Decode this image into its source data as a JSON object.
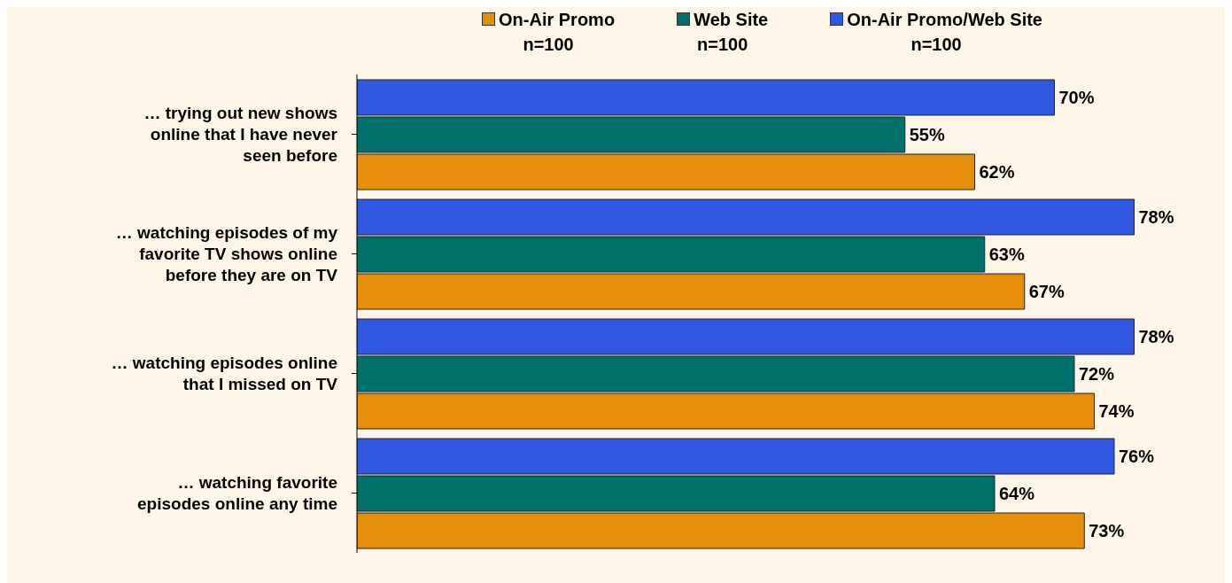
{
  "chart_data": {
    "type": "bar",
    "orientation": "horizontal",
    "categories": [
      "… trying out new shows online that I have never seen before",
      "… watching episodes of my favorite TV shows online before they are on TV",
      "… watching episodes online that I missed on TV",
      "… watching favorite episodes online any time"
    ],
    "series": [
      {
        "name": "On-Air Promo\nn=100",
        "color": "#e58e0a",
        "values": [
          62,
          67,
          74,
          73
        ],
        "value_labels": [
          "62%",
          "67%",
          "74%",
          "73%"
        ]
      },
      {
        "name": "Web Site\nn=100",
        "color": "#00706a",
        "values": [
          55,
          63,
          72,
          64
        ],
        "value_labels": [
          "55%",
          "63%",
          "72%",
          "64%"
        ]
      },
      {
        "name": "On-Air Promo/Web Site\nn=100",
        "color": "#3058e0",
        "values": [
          70,
          78,
          78,
          76
        ],
        "value_labels": [
          "70%",
          "78%",
          "78%",
          "76%"
        ]
      }
    ],
    "legend": "top",
    "tick_labels": "y"
  }
}
